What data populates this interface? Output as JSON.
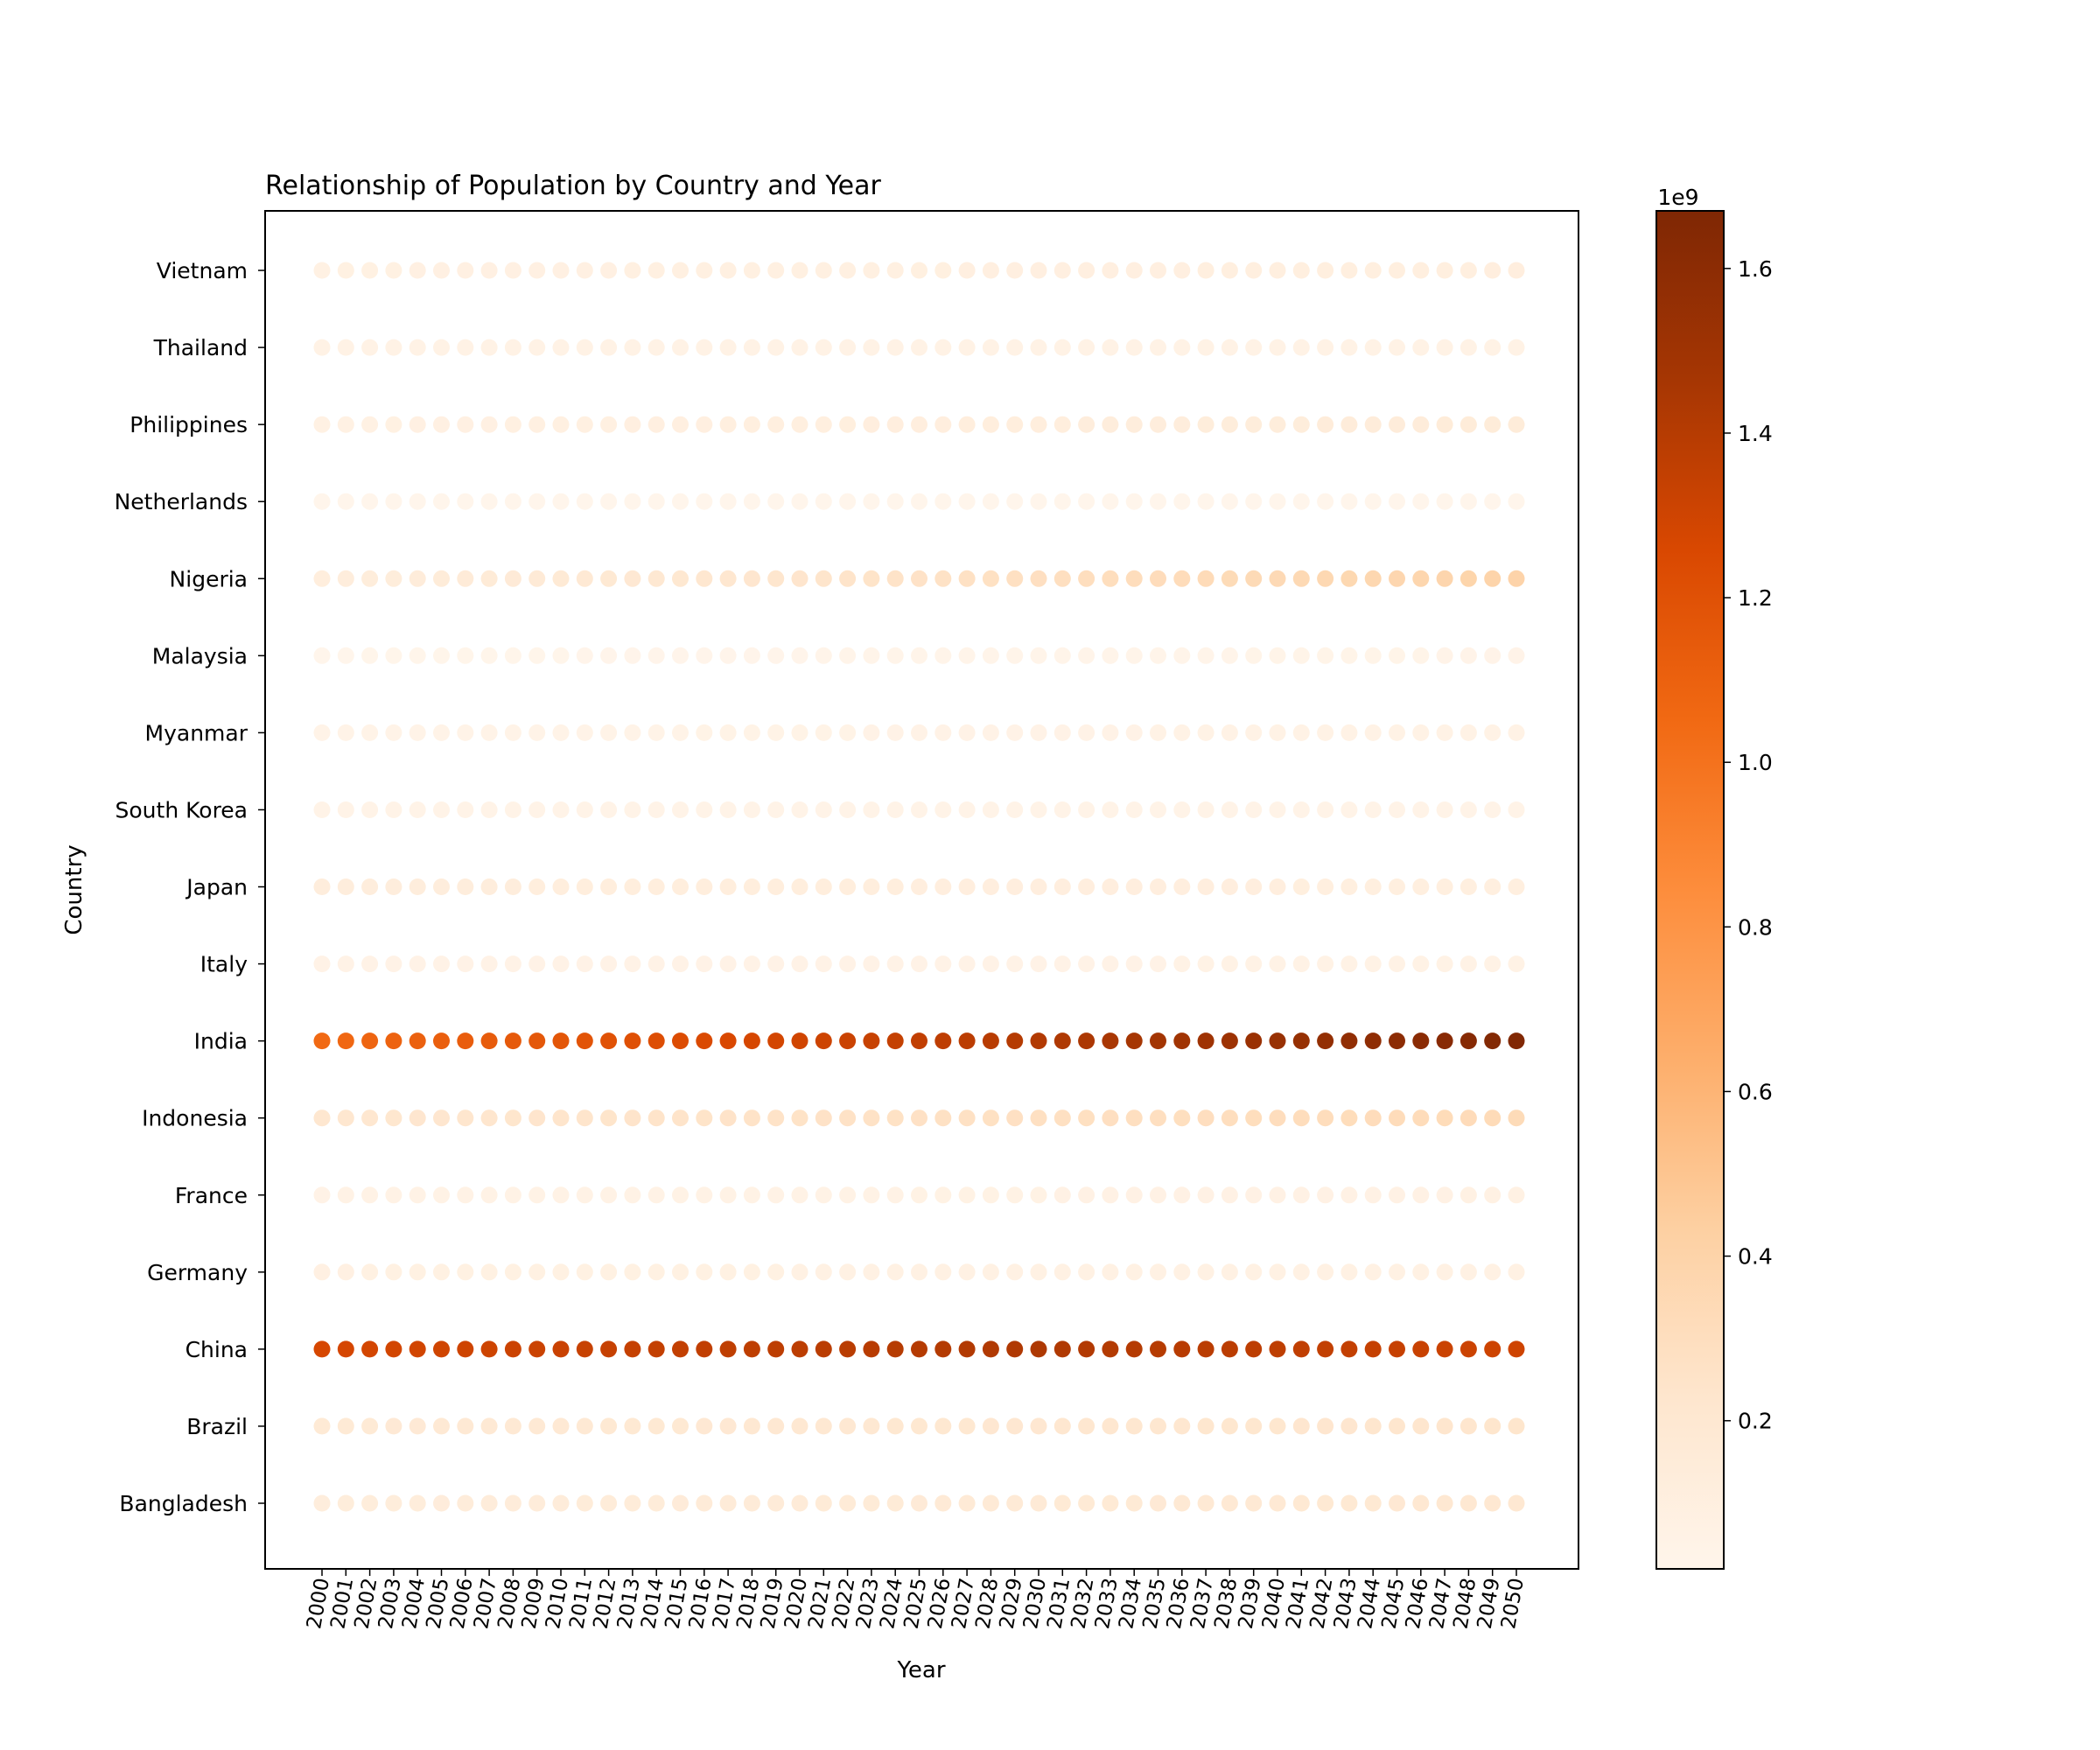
{
  "chart_data": {
    "type": "scatter",
    "title": "Relationship of Population by Country and Year",
    "xlabel": "Year",
    "ylabel": "Country",
    "grid": false,
    "colormap": "Oranges",
    "colorbar": {
      "min": 0.02,
      "max": 1.67,
      "ticks": [
        0.2,
        0.4,
        0.6,
        0.8,
        1.0,
        1.2,
        1.4,
        1.6
      ],
      "tick_labels": [
        "0.2",
        "0.4",
        "0.6",
        "0.8",
        "1.0",
        "1.2",
        "1.4",
        "1.6"
      ],
      "offset_text": "1e9",
      "unit": 1000000000
    },
    "categories_y": [
      "Bangladesh",
      "Brazil",
      "China",
      "Germany",
      "France",
      "Indonesia",
      "India",
      "Italy",
      "Japan",
      "South Korea",
      "Myanmar",
      "Malaysia",
      "Nigeria",
      "Netherlands",
      "Philippines",
      "Thailand",
      "Vietnam"
    ],
    "x": [
      "2000",
      "2001",
      "2002",
      "2003",
      "2004",
      "2005",
      "2006",
      "2007",
      "2008",
      "2009",
      "2010",
      "2011",
      "2012",
      "2013",
      "2014",
      "2015",
      "2016",
      "2017",
      "2018",
      "2019",
      "2020",
      "2021",
      "2022",
      "2023",
      "2024",
      "2025",
      "2026",
      "2027",
      "2028",
      "2029",
      "2030",
      "2031",
      "2032",
      "2033",
      "2034",
      "2035",
      "2036",
      "2037",
      "2038",
      "2039",
      "2040",
      "2041",
      "2042",
      "2043",
      "2044",
      "2045",
      "2046",
      "2047",
      "2048",
      "2049",
      "2050"
    ],
    "series": [
      {
        "name": "Bangladesh",
        "start": 0.13,
        "end": 0.2
      },
      {
        "name": "Brazil",
        "start": 0.175,
        "end": 0.23
      },
      {
        "name": "China",
        "start": 1.27,
        "end": 1.3,
        "peak": 1.43,
        "peak_year": "2030"
      },
      {
        "name": "Germany",
        "start": 0.082,
        "end": 0.078
      },
      {
        "name": "France",
        "start": 0.059,
        "end": 0.074
      },
      {
        "name": "Indonesia",
        "start": 0.21,
        "end": 0.33
      },
      {
        "name": "India",
        "start": 1.05,
        "end": 1.66
      },
      {
        "name": "Italy",
        "start": 0.057,
        "end": 0.06
      },
      {
        "name": "Japan",
        "start": 0.127,
        "end": 0.105
      },
      {
        "name": "South Korea",
        "start": 0.047,
        "end": 0.05
      },
      {
        "name": "Myanmar",
        "start": 0.046,
        "end": 0.065
      },
      {
        "name": "Malaysia",
        "start": 0.023,
        "end": 0.042
      },
      {
        "name": "Nigeria",
        "start": 0.12,
        "end": 0.4
      },
      {
        "name": "Netherlands",
        "start": 0.016,
        "end": 0.018
      },
      {
        "name": "Philippines",
        "start": 0.077,
        "end": 0.15
      },
      {
        "name": "Thailand",
        "start": 0.063,
        "end": 0.065
      },
      {
        "name": "Vietnam",
        "start": 0.08,
        "end": 0.11
      }
    ]
  }
}
